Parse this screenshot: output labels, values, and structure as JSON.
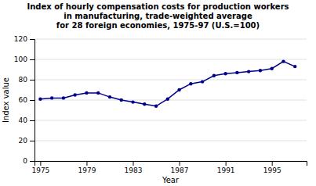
{
  "chart_data": {
    "type": "line",
    "title": "Index of hourly compensation costs for production workers\nin manufacturing, trade-weighted average\nfor 28 foreign economies, 1975-97 (U.S.=100)",
    "x_label": "Year",
    "y_label": "Index value",
    "x": [
      1975,
      1976,
      1977,
      1978,
      1979,
      1980,
      1981,
      1982,
      1983,
      1984,
      1985,
      1986,
      1987,
      1988,
      1989,
      1990,
      1991,
      1992,
      1993,
      1994,
      1995,
      1996,
      1997
    ],
    "values": [
      61,
      62,
      62,
      65,
      67,
      67,
      63,
      60,
      58,
      56,
      54,
      61,
      70,
      76,
      78,
      84,
      86,
      87,
      88,
      89,
      91,
      98,
      93
    ],
    "color": "#00008B",
    "marker": "circle",
    "xlim": [
      1974.5,
      1998.0
    ],
    "xticks": [
      1975,
      1979,
      1983,
      1987,
      1991,
      1995
    ],
    "ylim": [
      0,
      120
    ],
    "yticks": [
      0,
      20,
      40,
      60,
      80,
      100,
      120
    ],
    "grid": true
  }
}
